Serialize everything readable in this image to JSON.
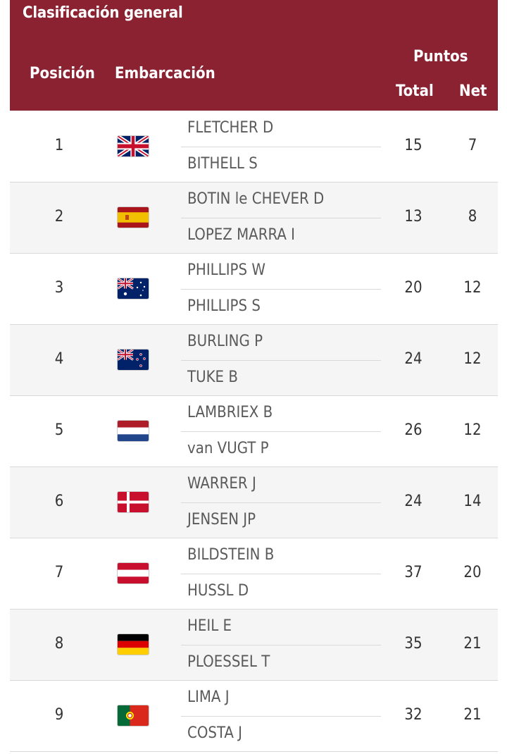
{
  "header": {
    "title": "Clasificación general",
    "col_position": "Posición",
    "col_boat": "Embarcación",
    "col_points": "Puntos",
    "col_total": "Total",
    "col_net": "Net"
  },
  "colors": {
    "header_bg": "#8a2232",
    "header_text": "#ffffff"
  },
  "rows": [
    {
      "position": "1",
      "flag": "gbr-flag-icon",
      "sailors": [
        "FLETCHER D",
        "BITHELL S"
      ],
      "total": "15",
      "net": "7"
    },
    {
      "position": "2",
      "flag": "esp-flag-icon",
      "sailors": [
        "BOTIN le CHEVER D",
        "LOPEZ MARRA I"
      ],
      "total": "13",
      "net": "8"
    },
    {
      "position": "3",
      "flag": "aus-flag-icon",
      "sailors": [
        "PHILLIPS W",
        "PHILLIPS S"
      ],
      "total": "20",
      "net": "12"
    },
    {
      "position": "4",
      "flag": "nzl-flag-icon",
      "sailors": [
        "BURLING P",
        "TUKE B"
      ],
      "total": "24",
      "net": "12"
    },
    {
      "position": "5",
      "flag": "ned-flag-icon",
      "sailors": [
        "LAMBRIEX B",
        "van VUGT P"
      ],
      "total": "26",
      "net": "12"
    },
    {
      "position": "6",
      "flag": "den-flag-icon",
      "sailors": [
        "WARRER J",
        "JENSEN JP"
      ],
      "total": "24",
      "net": "14"
    },
    {
      "position": "7",
      "flag": "aut-flag-icon",
      "sailors": [
        "BILDSTEIN B",
        "HUSSL D"
      ],
      "total": "37",
      "net": "20"
    },
    {
      "position": "8",
      "flag": "ger-flag-icon",
      "sailors": [
        "HEIL E",
        "PLOESSEL T"
      ],
      "total": "35",
      "net": "21"
    },
    {
      "position": "9",
      "flag": "por-flag-icon",
      "sailors": [
        "LIMA J",
        "COSTA J"
      ],
      "total": "32",
      "net": "21"
    }
  ]
}
